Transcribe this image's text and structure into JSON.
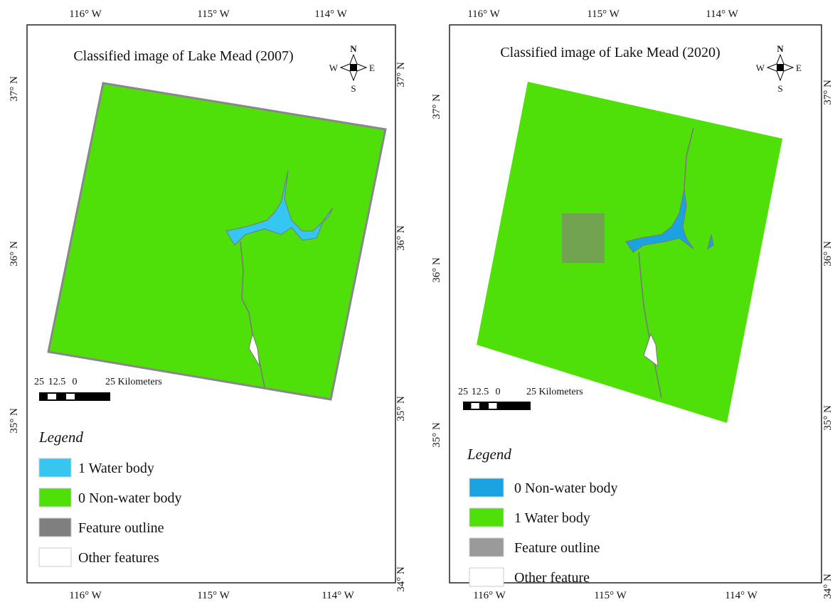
{
  "panels": [
    {
      "title": "Classified image of Lake Mead (2007)",
      "top_labels": [
        "116° W",
        "115° W",
        "114° W"
      ],
      "bottom_labels": [
        "116° W",
        "115° W",
        "114° W"
      ],
      "left_labels": [
        "37° N",
        "36° N",
        "35° N"
      ],
      "right_labels": [
        "37° N",
        "36° N",
        "35° N",
        "34° N"
      ],
      "compass": {
        "n": "N",
        "s": "S",
        "e": "E",
        "w": "W"
      },
      "scale": [
        "25",
        "12.5",
        "0",
        "25 Kilometers"
      ],
      "legend": {
        "title": "Legend",
        "items": [
          {
            "label": "1 Water body",
            "color": "#35c6f2"
          },
          {
            "label": "0 Non-water body",
            "color": "#4fe00a"
          },
          {
            "label": "Feature outline",
            "color": "#7f7f7f"
          },
          {
            "label": "Other features",
            "color": "#ffffff"
          }
        ]
      }
    },
    {
      "title": "Classified image of Lake Mead (2020)",
      "top_labels": [
        "116° W",
        "115° W",
        "114° W"
      ],
      "bottom_labels": [
        "116° W",
        "115° W",
        "114° W"
      ],
      "left_labels": [
        "37° N",
        "36° N",
        "35° N"
      ],
      "right_labels": [
        "37° N",
        "36° N",
        "35° N",
        "34° N"
      ],
      "compass": {
        "n": "N",
        "s": "S",
        "e": "E",
        "w": "W"
      },
      "scale": [
        "25",
        "12.5",
        "0",
        "25 Kilometers"
      ],
      "legend": {
        "title": "Legend",
        "items": [
          {
            "label": "0 Non-water body",
            "color": "#1aa3e0"
          },
          {
            "label": "1 Water body",
            "color": "#4fe00a"
          },
          {
            "label": "Feature outline",
            "color": "#9a9a9a"
          },
          {
            "label": "Other feature",
            "color": "#ffffff"
          }
        ]
      }
    }
  ]
}
